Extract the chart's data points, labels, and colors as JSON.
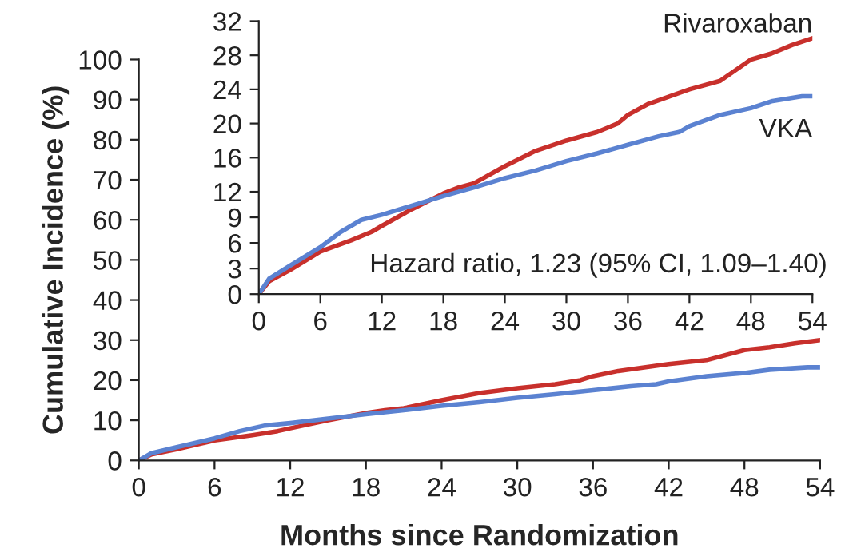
{
  "chart_data": [
    {
      "type": "line",
      "xlabel": "Months since Randomization",
      "ylabel": "Cumulative Incidence (%)",
      "xlim": [
        0,
        54
      ],
      "xticks": [
        0,
        6,
        12,
        18,
        24,
        30,
        36,
        42,
        48,
        54
      ],
      "ylim": [
        0,
        100
      ],
      "yticks": [
        0,
        10,
        20,
        30,
        40,
        50,
        60,
        70,
        80,
        90,
        100
      ],
      "grid": false,
      "legend": false,
      "series": [
        {
          "color": "#c8302c",
          "x": [
            0,
            1,
            3,
            6,
            9,
            11,
            12,
            15,
            18,
            19.5,
            21,
            24,
            27,
            30,
            33,
            35,
            36,
            38,
            42,
            45,
            48,
            50,
            52,
            54
          ],
          "values": [
            0,
            1.5,
            2.8,
            5,
            6.3,
            7.3,
            8,
            10,
            11.8,
            12.5,
            13,
            15,
            16.8,
            18,
            19,
            20,
            21,
            22.3,
            24,
            25,
            27.5,
            28.2,
            29.2,
            30
          ]
        },
        {
          "color": "#5b82d1",
          "x": [
            0,
            1,
            3,
            6,
            8,
            10,
            12,
            15,
            18,
            21,
            24,
            27,
            30,
            33,
            36,
            39,
            41,
            42,
            45,
            48,
            50,
            53,
            54
          ],
          "values": [
            0,
            1.8,
            3.3,
            5.5,
            7.3,
            8.7,
            9.3,
            10.4,
            11.5,
            12.5,
            13.6,
            14.5,
            15.6,
            16.5,
            17.5,
            18.5,
            19,
            19.7,
            21,
            21.8,
            22.6,
            23.2,
            23.2
          ]
        }
      ]
    },
    {
      "type": "line",
      "xlim": [
        0,
        54
      ],
      "xticks": [
        0,
        6,
        12,
        18,
        24,
        30,
        36,
        42,
        48,
        54
      ],
      "ylim": [
        0,
        32
      ],
      "yticks": [
        0,
        3,
        6,
        9,
        12,
        16,
        20,
        24,
        28,
        32
      ],
      "grid": false,
      "legend": false,
      "annotations": [
        "Hazard ratio, 1.23 (95% CI, 1.09–1.40)"
      ],
      "series": [
        {
          "name": "Rivaroxaban",
          "color": "#c8302c",
          "x": [
            0,
            1,
            3,
            6,
            9,
            11,
            12,
            15,
            18,
            19.5,
            21,
            24,
            27,
            30,
            33,
            35,
            36,
            38,
            42,
            45,
            48,
            50,
            52,
            54
          ],
          "values": [
            0,
            1.5,
            2.8,
            5,
            6.3,
            7.3,
            8,
            10,
            11.8,
            12.5,
            13,
            15,
            16.8,
            18,
            19,
            20,
            21,
            22.3,
            24,
            25,
            27.5,
            28.2,
            29.2,
            30
          ]
        },
        {
          "name": "VKA",
          "color": "#5b82d1",
          "x": [
            0,
            1,
            3,
            6,
            8,
            10,
            12,
            15,
            18,
            21,
            24,
            27,
            30,
            33,
            36,
            39,
            41,
            42,
            45,
            48,
            50,
            53,
            54
          ],
          "values": [
            0,
            1.8,
            3.3,
            5.5,
            7.3,
            8.7,
            9.3,
            10.4,
            11.5,
            12.5,
            13.6,
            14.5,
            15.6,
            16.5,
            17.5,
            18.5,
            19,
            19.7,
            21,
            21.8,
            22.6,
            23.2,
            23.2
          ]
        }
      ]
    }
  ]
}
